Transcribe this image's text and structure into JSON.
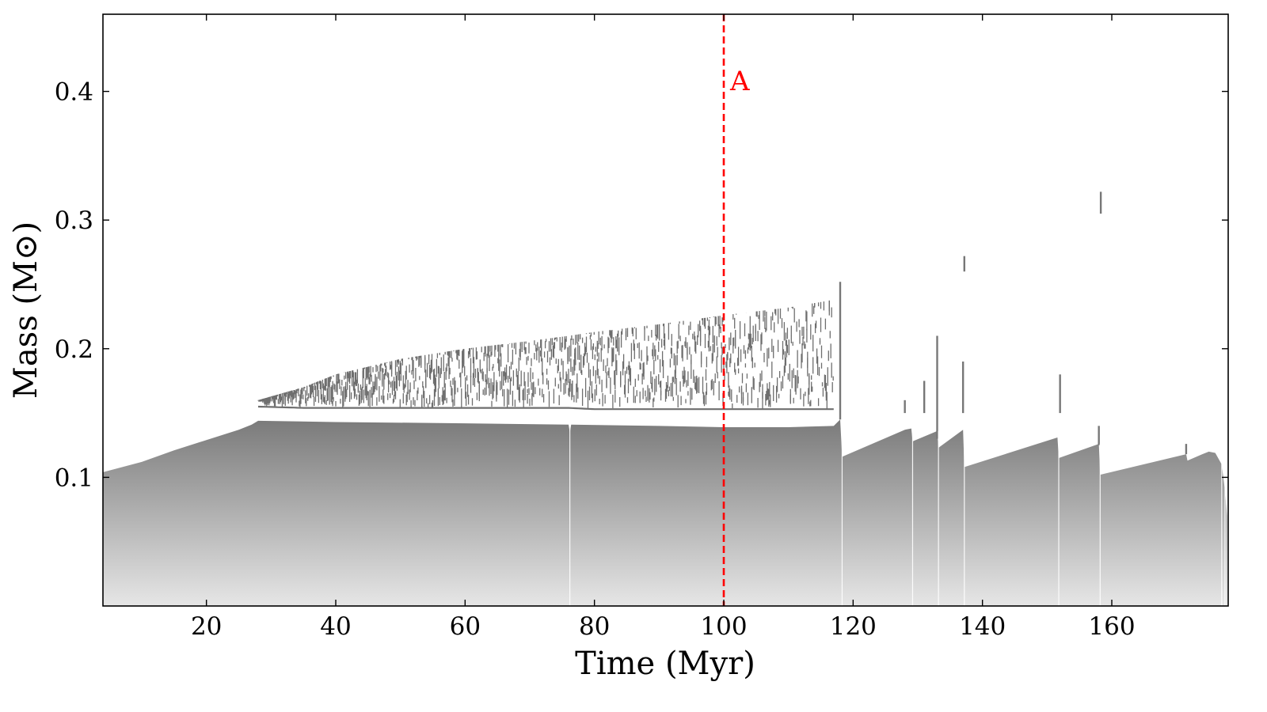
{
  "chart_data": {
    "type": "area",
    "title": "",
    "xlabel": "Time (Myr)",
    "ylabel": "Mass (M⊙)",
    "xlim": [
      4,
      178
    ],
    "ylim": [
      0.0,
      0.46
    ],
    "x_ticks": [
      20,
      40,
      60,
      80,
      100,
      120,
      140,
      160
    ],
    "y_ticks": [
      0.1,
      0.2,
      0.3,
      0.4
    ],
    "grid": false,
    "legend": "none",
    "colors": {
      "region_top": "#7a7a7a",
      "region_bottom": "#e6e6e6",
      "upper_zone": "#6e6e6e",
      "marker": "#ff0000",
      "axis": "#000000"
    },
    "series": [
      {
        "kind": "lower-region-top-boundary",
        "points": [
          [
            4,
            0.104
          ],
          [
            10,
            0.112
          ],
          [
            15,
            0.121
          ],
          [
            20,
            0.129
          ],
          [
            25,
            0.137
          ],
          [
            27,
            0.141
          ],
          [
            28,
            0.144
          ],
          [
            40,
            0.143
          ],
          [
            60,
            0.142
          ],
          [
            76,
            0.141
          ],
          [
            76.2,
            0.135
          ],
          [
            76.4,
            0.141
          ],
          [
            90,
            0.14
          ],
          [
            100,
            0.139
          ],
          [
            110,
            0.139
          ],
          [
            117,
            0.14
          ],
          [
            118,
            0.145
          ],
          [
            118.3,
            0.116
          ],
          [
            128,
            0.137
          ],
          [
            129,
            0.138
          ],
          [
            129.2,
            0.128
          ],
          [
            133,
            0.136
          ],
          [
            133.2,
            0.123
          ],
          [
            137,
            0.137
          ],
          [
            137.2,
            0.108
          ],
          [
            151.6,
            0.131
          ],
          [
            151.8,
            0.115
          ],
          [
            158,
            0.126
          ],
          [
            158.2,
            0.102
          ],
          [
            171.5,
            0.118
          ],
          [
            171.7,
            0.113
          ],
          [
            174,
            0.118
          ],
          [
            175,
            0.12
          ],
          [
            176,
            0.119
          ],
          [
            177,
            0.11
          ],
          [
            177.5,
            0.09
          ],
          [
            177.9,
            0.065
          ]
        ]
      },
      {
        "kind": "upper-convective-zone",
        "points": [
          [
            28,
            0.155,
            0.16
          ],
          [
            35,
            0.154,
            0.17
          ],
          [
            40,
            0.154,
            0.18
          ],
          [
            50,
            0.154,
            0.192
          ],
          [
            60,
            0.154,
            0.2
          ],
          [
            70,
            0.154,
            0.206
          ],
          [
            76,
            0.154,
            0.21
          ],
          [
            80,
            0.153,
            0.213
          ],
          [
            90,
            0.153,
            0.219
          ],
          [
            100,
            0.153,
            0.226
          ],
          [
            110,
            0.153,
            0.232
          ],
          [
            117,
            0.153,
            0.238
          ]
        ]
      },
      {
        "kind": "spikes",
        "points": [
          [
            118,
            0.145,
            0.252
          ],
          [
            128,
            0.15,
            0.16
          ],
          [
            131,
            0.15,
            0.175
          ],
          [
            133,
            0.13,
            0.21
          ],
          [
            137,
            0.15,
            0.19
          ],
          [
            137.2,
            0.26,
            0.272
          ],
          [
            152,
            0.15,
            0.18
          ],
          [
            158,
            0.14,
            0.125
          ],
          [
            158.3,
            0.305,
            0.322
          ],
          [
            171.5,
            0.118,
            0.126
          ]
        ]
      }
    ],
    "annotations": [
      {
        "type": "vertical-dashed-line",
        "x": 100,
        "label": "A",
        "color": "#ff0000"
      }
    ]
  }
}
